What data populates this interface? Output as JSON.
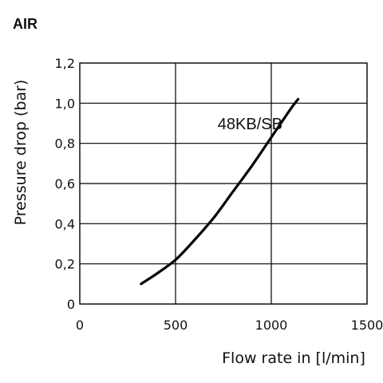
{
  "chart_data": {
    "type": "line",
    "title": "AIR",
    "xlabel": "Flow rate in [l/min]",
    "ylabel": "Pressure drop (bar)",
    "xlim": [
      0,
      1500
    ],
    "ylim": [
      0,
      1.2
    ],
    "x_ticks": [
      "0",
      "500",
      "1000",
      "1500"
    ],
    "y_ticks": [
      "0",
      "0,2",
      "0,4",
      "0,6",
      "0,8",
      "1,0",
      "1,2"
    ],
    "grid": true,
    "series": [
      {
        "name": "48KB/SB",
        "x": [
          320,
          400,
          500,
          600,
          700,
          800,
          900,
          1000,
          1100,
          1140
        ],
        "y": [
          0.1,
          0.15,
          0.22,
          0.32,
          0.43,
          0.56,
          0.69,
          0.83,
          0.97,
          1.02
        ]
      }
    ],
    "line_color": "#000000"
  }
}
